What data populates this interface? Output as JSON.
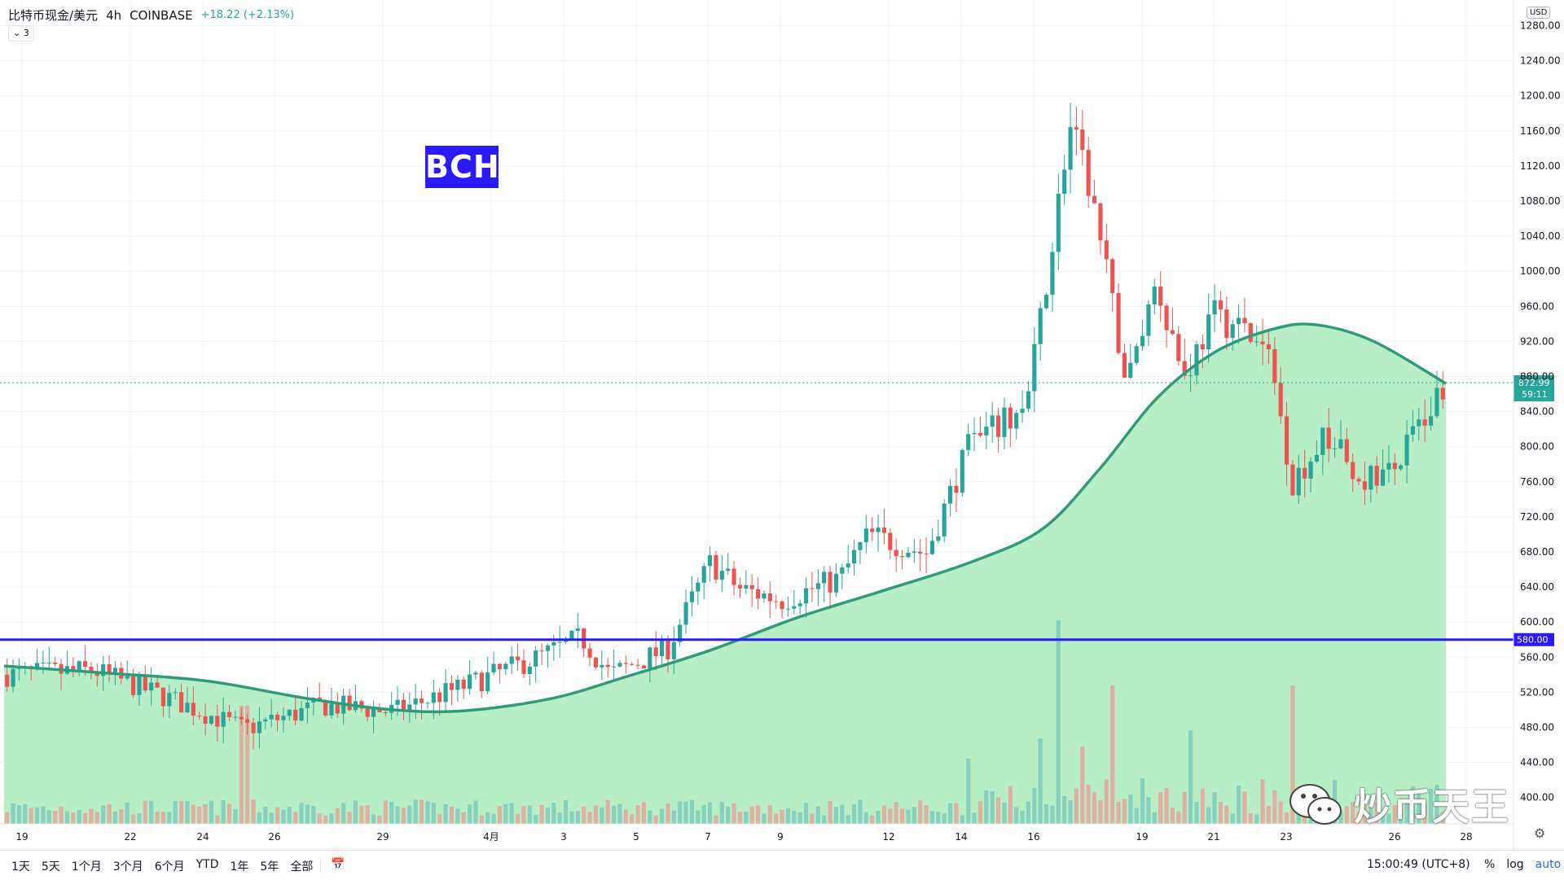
{
  "header": {
    "symbol": "比特币现金/美元",
    "interval": "4h",
    "exchange": "COINBASE",
    "change": "+18.22 (+2.13%)",
    "indicator_count": "3"
  },
  "annotation": {
    "label": "BCH"
  },
  "currency": "USD",
  "price_scale": {
    "ticks": [
      "1280.00",
      "1240.00",
      "1200.00",
      "1160.00",
      "1120.00",
      "1080.00",
      "1040.00",
      "1000.00",
      "960.00",
      "920.00",
      "880.00",
      "840.00",
      "800.00",
      "760.00",
      "720.00",
      "680.00",
      "640.00",
      "600.00",
      "560.00",
      "520.00",
      "480.00",
      "440.00",
      "400.00"
    ],
    "last_price_label": "872.99",
    "countdown_label": "59:11",
    "hline_label": "580.00"
  },
  "time_scale": {
    "ticks": [
      "19",
      "22",
      "24",
      "26",
      "29",
      "4月",
      "3",
      "5",
      "7",
      "9",
      "12",
      "14",
      "16",
      "19",
      "21",
      "23",
      "26",
      "28"
    ]
  },
  "bottom_toolbar": {
    "ranges": [
      "1天",
      "5天",
      "1个月",
      "3个月",
      "6个月",
      "YTD",
      "1年",
      "5年",
      "全部"
    ],
    "clock": "15:00:49 (UTC+8)",
    "percent": "%",
    "log": "log",
    "auto": "auto"
  },
  "watermark": {
    "text": "炒币天王"
  },
  "colors": {
    "up": "#26a69a",
    "down": "#ef5350",
    "ma_line": "#2e9c7a",
    "ma_fill": "#b7eec6",
    "hline": "#2b1aff",
    "badge": "#2b1aff"
  },
  "chart_data": {
    "type": "candlestick",
    "x_range": [
      "3月18",
      "4月28"
    ],
    "ylim": [
      370,
      1300
    ],
    "horizontal_line": 580,
    "last_price": 872.99,
    "moving_average_curve": [
      {
        "t": 0,
        "v": 550
      },
      {
        "t": 0.07,
        "v": 542
      },
      {
        "t": 0.14,
        "v": 533
      },
      {
        "t": 0.21,
        "v": 513
      },
      {
        "t": 0.27,
        "v": 500
      },
      {
        "t": 0.32,
        "v": 499
      },
      {
        "t": 0.38,
        "v": 513
      },
      {
        "t": 0.43,
        "v": 537
      },
      {
        "t": 0.49,
        "v": 568
      },
      {
        "t": 0.55,
        "v": 605
      },
      {
        "t": 0.61,
        "v": 636
      },
      {
        "t": 0.67,
        "v": 668
      },
      {
        "t": 0.72,
        "v": 706
      },
      {
        "t": 0.76,
        "v": 775
      },
      {
        "t": 0.8,
        "v": 856
      },
      {
        "t": 0.84,
        "v": 908
      },
      {
        "t": 0.88,
        "v": 934
      },
      {
        "t": 0.91,
        "v": 939
      },
      {
        "t": 0.95,
        "v": 920
      },
      {
        "t": 1.0,
        "v": 872
      }
    ],
    "anchors": [
      {
        "t": 0,
        "v": 540
      },
      {
        "t": 0.06,
        "v": 545
      },
      {
        "t": 0.105,
        "v": 518
      },
      {
        "t": 0.165,
        "v": 478
      },
      {
        "t": 0.22,
        "v": 505
      },
      {
        "t": 0.27,
        "v": 498
      },
      {
        "t": 0.32,
        "v": 528
      },
      {
        "t": 0.37,
        "v": 560
      },
      {
        "t": 0.4,
        "v": 582
      },
      {
        "t": 0.42,
        "v": 540
      },
      {
        "t": 0.46,
        "v": 570
      },
      {
        "t": 0.49,
        "v": 668
      },
      {
        "t": 0.51,
        "v": 638
      },
      {
        "t": 0.54,
        "v": 625
      },
      {
        "t": 0.58,
        "v": 650
      },
      {
        "t": 0.6,
        "v": 700
      },
      {
        "t": 0.64,
        "v": 678
      },
      {
        "t": 0.67,
        "v": 800
      },
      {
        "t": 0.71,
        "v": 845
      },
      {
        "t": 0.725,
        "v": 1000
      },
      {
        "t": 0.74,
        "v": 1165
      },
      {
        "t": 0.755,
        "v": 1090
      },
      {
        "t": 0.78,
        "v": 870
      },
      {
        "t": 0.8,
        "v": 990
      },
      {
        "t": 0.82,
        "v": 880
      },
      {
        "t": 0.84,
        "v": 950
      },
      {
        "t": 0.86,
        "v": 935
      },
      {
        "t": 0.88,
        "v": 900
      },
      {
        "t": 0.895,
        "v": 760
      },
      {
        "t": 0.92,
        "v": 815
      },
      {
        "t": 0.94,
        "v": 765
      },
      {
        "t": 0.965,
        "v": 770
      },
      {
        "t": 1.0,
        "v": 872
      }
    ],
    "volume_spikes": [
      {
        "t": 0.165,
        "v": 0.58
      },
      {
        "t": 0.733,
        "v": 1.0
      },
      {
        "t": 0.77,
        "v": 0.68
      },
      {
        "t": 0.895,
        "v": 0.68
      },
      {
        "t": 0.825,
        "v": 0.46
      },
      {
        "t": 0.72,
        "v": 0.42
      },
      {
        "t": 0.75,
        "v": 0.38
      },
      {
        "t": 0.67,
        "v": 0.32
      }
    ]
  }
}
